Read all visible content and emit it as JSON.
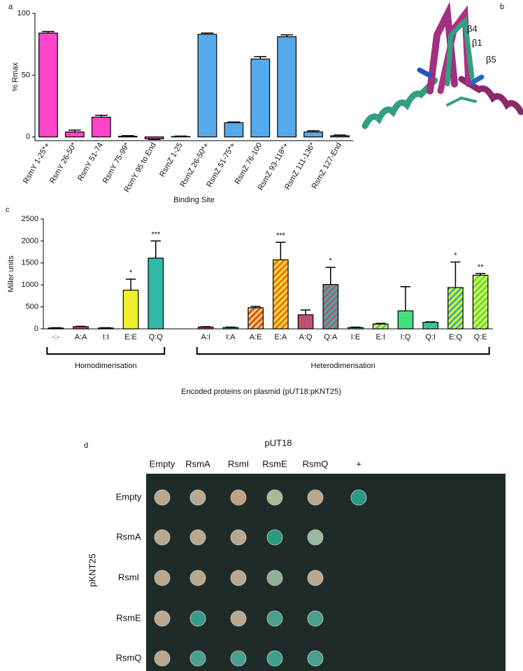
{
  "panel_labels": [
    "a",
    "b",
    "c",
    "d"
  ],
  "chart_data": [
    {
      "type": "bar",
      "ylabel": "% Rmax",
      "xlabel": "Binding Site",
      "categories": [
        "RsmY 1-25*+",
        "RsmY 26-50*",
        "RsmY 51-74",
        "RsmY 75-99*",
        "RsmY 95 to End",
        "RsmZ 1-25",
        "RsmZ 26-50*+",
        "RsmZ 51-75*+",
        "RsmZ 76-100",
        "RsmZ 93-118*+",
        "RsmZ 111-136*",
        "RsmZ 127-End"
      ],
      "values": [
        84,
        4,
        16,
        0.5,
        -1.5,
        0.3,
        83,
        11.5,
        63,
        81,
        4,
        1
      ],
      "errors": [
        1.2,
        1.5,
        1.5,
        0.5,
        0.5,
        0.4,
        1,
        0.6,
        2,
        1.5,
        1,
        0.5
      ],
      "colors": [
        "#ff44cc",
        "#ff44cc",
        "#ff44cc",
        "#ff44cc",
        "#ff44cc",
        "#55aaee",
        "#55aaee",
        "#55aaee",
        "#55aaee",
        "#55aaee",
        "#55aaee",
        "#55aaee"
      ],
      "ylim": [
        -3,
        100
      ],
      "yticks": [
        0,
        50,
        100
      ]
    },
    {
      "type": "bar",
      "ylabel": "Miller units",
      "xlabel": "Encoded proteins on plasmid (pUT18:pKNT25)",
      "categories": [
        "-:-",
        "A:A",
        "I:I",
        "E:E",
        "Q:Q",
        null,
        "A:I",
        "I:A",
        "A:E",
        "E:A",
        "A:Q",
        "Q:A",
        "I:E",
        "E:I",
        "I:Q",
        "Q:I",
        "E:Q",
        "Q:E"
      ],
      "values": [
        20,
        50,
        20,
        880,
        1610,
        null,
        40,
        30,
        480,
        1570,
        320,
        1010,
        30,
        110,
        410,
        150,
        940,
        1220
      ],
      "errors": [
        5,
        8,
        5,
        250,
        390,
        null,
        10,
        10,
        30,
        400,
        110,
        390,
        10,
        15,
        550,
        10,
        580,
        40
      ],
      "colors": [
        "#999999",
        "#e04060",
        "#40c080",
        "#f0f030",
        "#30b8a8",
        null,
        "#e04060",
        "#40d080",
        "#e04060",
        "#f07020",
        "#c05070",
        "#c05070",
        "#40d080",
        "#40d080",
        "#40e080",
        "#40d080",
        "#f0f030",
        "#f0f030"
      ],
      "stripe_colors": [
        null,
        null,
        null,
        null,
        null,
        null,
        null,
        null,
        "#f0e030",
        "#f0e030",
        null,
        "#30b8a8",
        null,
        "#f0f030",
        null,
        "#30b8a8",
        "#30b8a8",
        "#50e060"
      ],
      "annotations": [
        null,
        null,
        null,
        "*",
        "***",
        null,
        null,
        null,
        null,
        "***",
        null,
        "*",
        null,
        null,
        null,
        null,
        "*",
        "**"
      ],
      "groups": [
        {
          "label": "Homodimerisation",
          "categories": [
            "-:-",
            "Q:Q"
          ]
        },
        {
          "label": "Heterodimerisation",
          "categories": [
            "A:I",
            "Q:E"
          ]
        }
      ],
      "ylim": [
        0,
        2500
      ],
      "yticks": [
        0,
        500,
        1000,
        1500,
        2000,
        2500
      ]
    }
  ],
  "structure": {
    "labels": [
      {
        "text": "β4",
        "color": "#b03080"
      },
      {
        "text": "β1",
        "color": "#30a080"
      },
      {
        "text": "β5",
        "color": "#4499dd"
      }
    ]
  },
  "plate": {
    "title": "pUT18",
    "row_title": "pKNT25",
    "columns": [
      "Empty",
      "RsmA",
      "RsmI",
      "RsmE",
      "RsmQ",
      "+"
    ],
    "rows": [
      "Empty",
      "RsmA",
      "RsmI",
      "RsmE",
      "RsmQ"
    ],
    "colonies": [
      [
        "#b8a890",
        "#b8a890",
        "#c0a080",
        "#a8b898",
        "#b8a890",
        "#2a9a88"
      ],
      [
        "#b8a890",
        "#b8a890",
        "#b8a890",
        "#2a9a80",
        "#98b8a0",
        null
      ],
      [
        "#b8a890",
        "#b8a890",
        "#b8a890",
        "#90b098",
        "#b8a890",
        null
      ],
      [
        "#b8a890",
        "#3a9a88",
        "#b8a890",
        "#48a090",
        "#48a090",
        null
      ],
      [
        "#b8a890",
        "#48a090",
        "#48a090",
        "#40a090",
        "#48a090",
        null
      ]
    ]
  }
}
